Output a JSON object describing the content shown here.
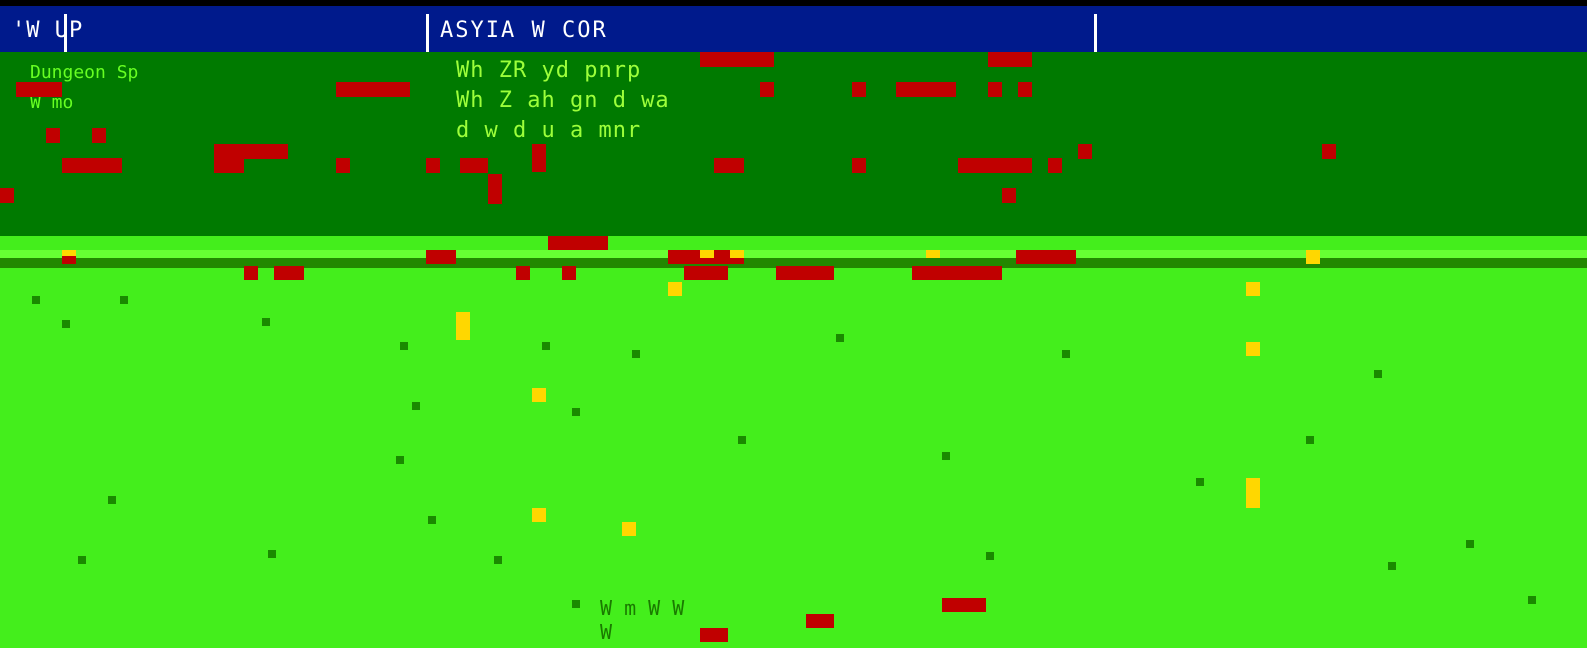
{
  "window": {
    "left_title": "'W   UP",
    "center_title": "ASYIA W  COR"
  },
  "panel": {
    "left_lines": [
      "Dungeon  Sp",
      "",
      "W  mo",
      ""
    ],
    "text_lines": [
      "Wh  ZR   yd  pnrp",
      "Wh  Z   ah  gn  d  wa",
      "d  w d  u  a  mnr"
    ]
  },
  "status": {
    "line1": "W   m     W      W",
    "line2": "W"
  },
  "colors": {
    "title_bar": "#001a8c",
    "panel": "#007a00",
    "field": "#44ee1c",
    "block": "#c00000",
    "highlight": "#ffd700"
  }
}
